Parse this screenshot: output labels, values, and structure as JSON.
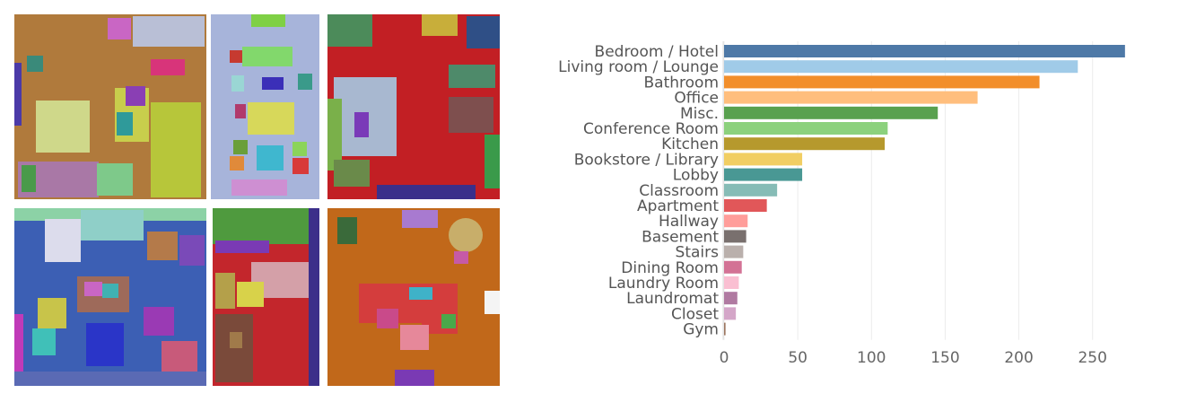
{
  "panels": [
    {
      "name": "scene-bedroom-top-left",
      "floor": "#b07a3c"
    },
    {
      "name": "scene-room-top-middle",
      "floor": "#a7b4da"
    },
    {
      "name": "scene-room-top-right",
      "floor": "#c21f24"
    },
    {
      "name": "scene-room-bottom-left",
      "floor": "#3c5fb4"
    },
    {
      "name": "scene-room-bottom-middle",
      "floor": "#c3262c"
    },
    {
      "name": "scene-room-bottom-right",
      "floor": "#c1681a"
    }
  ],
  "chart_data": {
    "type": "bar",
    "orientation": "horizontal",
    "categories": [
      "Bedroom / Hotel",
      "Living room / Lounge",
      "Bathroom",
      "Office",
      "Misc.",
      "Conference Room",
      "Kitchen",
      "Bookstore / Library",
      "Lobby",
      "Classroom",
      "Apartment",
      "Hallway",
      "Basement",
      "Stairs",
      "Dining Room",
      "Laundry Room",
      "Laundromat",
      "Closet",
      "Gym"
    ],
    "values": [
      272,
      240,
      214,
      172,
      145,
      111,
      109,
      53,
      53,
      36,
      29,
      16,
      15,
      13,
      12,
      10,
      9,
      8,
      1
    ],
    "colors": [
      "#4e79a7",
      "#a0cbe8",
      "#f28e2b",
      "#ffbe7d",
      "#59a14f",
      "#8cd17d",
      "#b6992d",
      "#f1ce63",
      "#499894",
      "#86bcb6",
      "#e15759",
      "#ff9d9a",
      "#79706e",
      "#bab0ac",
      "#d37295",
      "#fabfd2",
      "#b07aa1",
      "#d4a6c8",
      "#9d7660"
    ],
    "xticks": [
      0,
      50,
      100,
      150,
      200,
      250
    ],
    "xlim": [
      0,
      280
    ],
    "grid": true,
    "title": "",
    "xlabel": "",
    "ylabel": ""
  }
}
